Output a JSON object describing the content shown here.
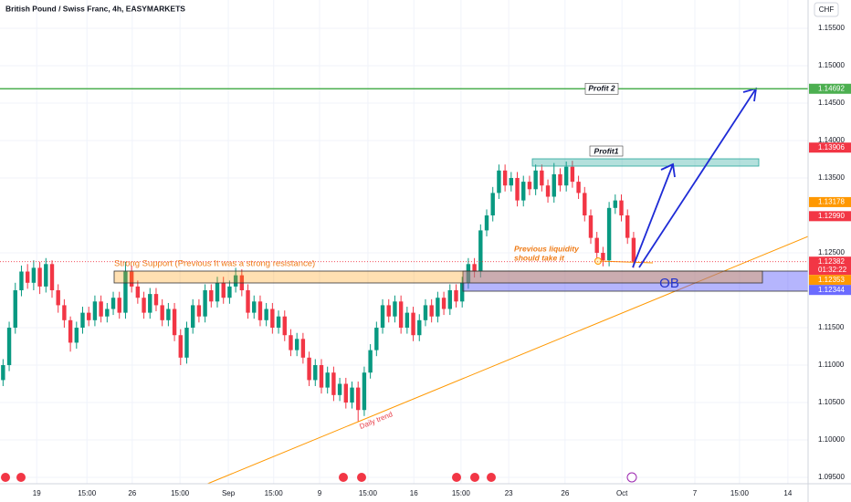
{
  "chart_data": {
    "type": "candlestick",
    "title": "British Pound / Swiss Franc, 4h, EASYMARKETS",
    "currency": "CHF",
    "up_color": "#089981",
    "down_color": "#f23645",
    "grid": true,
    "xlim": [
      -0.5,
      131.5
    ],
    "ylim": [
      1.09415,
      1.15878
    ],
    "xticks": [
      {
        "value": 5.5,
        "label": "19"
      },
      {
        "value": 13.7,
        "label": "15:00"
      },
      {
        "value": 21.1,
        "label": "26"
      },
      {
        "value": 28.9,
        "label": "15:00"
      },
      {
        "value": 36.8,
        "label": "Sep"
      },
      {
        "value": 44.2,
        "label": "15:00"
      },
      {
        "value": 51.7,
        "label": "9"
      },
      {
        "value": 59.6,
        "label": "15:00"
      },
      {
        "value": 67.1,
        "label": "16"
      },
      {
        "value": 74.8,
        "label": "15:00"
      },
      {
        "value": 82.6,
        "label": "23"
      },
      {
        "value": 91.8,
        "label": "26"
      },
      {
        "value": 101.1,
        "label": "Oct"
      },
      {
        "value": 113.0,
        "label": "7"
      },
      {
        "value": 120.3,
        "label": "15:00"
      },
      {
        "value": 128.2,
        "label": "14"
      }
    ],
    "yticks": [
      {
        "value": 1.155,
        "label": "1.15500"
      },
      {
        "value": 1.15,
        "label": "1.15000"
      },
      {
        "value": 1.145,
        "label": "1.14500"
      },
      {
        "value": 1.14,
        "label": "1.14000"
      },
      {
        "value": 1.135,
        "label": "1.13500"
      },
      {
        "value": 1.125,
        "label": "1.12500"
      },
      {
        "value": 1.115,
        "label": "1.11500"
      },
      {
        "value": 1.11,
        "label": "1.11000"
      },
      {
        "value": 1.105,
        "label": "1.10500"
      },
      {
        "value": 1.1,
        "label": "1.10000"
      },
      {
        "value": 1.095,
        "label": "1.09500"
      }
    ],
    "price_tags": [
      {
        "value": 1.14692,
        "label": "1.14692",
        "color": "#4caf50"
      },
      {
        "value": 1.13906,
        "label": "1.13906",
        "color": "#f23645"
      },
      {
        "value": 1.13178,
        "label": "1.13178",
        "color": "#ff9800"
      },
      {
        "value": 1.1299,
        "label": "1.12990",
        "color": "#f23645"
      },
      {
        "value": 1.12382,
        "label": "1.12382",
        "color": "#f23645",
        "countdown": "01:32:22"
      },
      {
        "value": 1.12353,
        "label": "1.12353",
        "color": "#ff9800"
      },
      {
        "value": 1.12344,
        "label": "1.12344",
        "color": "#6b6bff"
      }
    ],
    "annotations": {
      "support": "Strong Support (Previous It was a strong resistance)",
      "liquidity_1": "Previous liquidity",
      "liquidity_2": "should take it",
      "ob": "OB",
      "profit1": "Profit1",
      "profit2": "Profit 2",
      "trend": "Daily trend"
    },
    "candles": [
      [
        1.108,
        1.1108,
        1.1072,
        1.11
      ],
      [
        1.11,
        1.1158,
        1.1092,
        1.115
      ],
      [
        1.115,
        1.121,
        1.1142,
        1.12
      ],
      [
        1.12,
        1.1233,
        1.1192,
        1.1225
      ],
      [
        1.1225,
        1.1235,
        1.1202,
        1.121
      ],
      [
        1.121,
        1.124,
        1.12,
        1.123
      ],
      [
        1.123,
        1.1238,
        1.1195,
        1.1205
      ],
      [
        1.1205,
        1.1243,
        1.1197,
        1.1235
      ],
      [
        1.1235,
        1.124,
        1.119,
        1.12
      ],
      [
        1.12,
        1.1208,
        1.117,
        1.118
      ],
      [
        1.118,
        1.1188,
        1.115,
        1.116
      ],
      [
        1.116,
        1.1165,
        1.1118,
        1.113
      ],
      [
        1.113,
        1.1158,
        1.1122,
        1.115
      ],
      [
        1.115,
        1.1178,
        1.1142,
        1.117
      ],
      [
        1.117,
        1.1178,
        1.1152,
        1.116
      ],
      [
        1.116,
        1.1193,
        1.1152,
        1.1185
      ],
      [
        1.1185,
        1.1193,
        1.1157,
        1.1165
      ],
      [
        1.1165,
        1.1183,
        1.1157,
        1.1175
      ],
      [
        1.1175,
        1.1198,
        1.1167,
        1.119
      ],
      [
        1.119,
        1.1198,
        1.1162,
        1.117
      ],
      [
        1.117,
        1.1238,
        1.1162,
        1.1225
      ],
      [
        1.1225,
        1.1233,
        1.1197,
        1.1205
      ],
      [
        1.1205,
        1.1213,
        1.1182,
        1.119
      ],
      [
        1.119,
        1.1198,
        1.1162,
        1.117
      ],
      [
        1.117,
        1.1203,
        1.1162,
        1.1195
      ],
      [
        1.1195,
        1.1203,
        1.1172,
        1.118
      ],
      [
        1.118,
        1.1188,
        1.1152,
        1.116
      ],
      [
        1.116,
        1.1183,
        1.1152,
        1.1175
      ],
      [
        1.1175,
        1.1183,
        1.1132,
        1.114
      ],
      [
        1.114,
        1.1148,
        1.11,
        1.111
      ],
      [
        1.111,
        1.1158,
        1.1102,
        1.115
      ],
      [
        1.115,
        1.1188,
        1.1142,
        1.118
      ],
      [
        1.118,
        1.1188,
        1.1157,
        1.1165
      ],
      [
        1.1165,
        1.1208,
        1.1157,
        1.12
      ],
      [
        1.12,
        1.1208,
        1.1177,
        1.1185
      ],
      [
        1.1185,
        1.1218,
        1.1177,
        1.121
      ],
      [
        1.121,
        1.1218,
        1.1182,
        1.119
      ],
      [
        1.119,
        1.1213,
        1.1182,
        1.1205
      ],
      [
        1.1205,
        1.123,
        1.1197,
        1.122
      ],
      [
        1.122,
        1.1228,
        1.1192,
        1.12
      ],
      [
        1.12,
        1.1208,
        1.1162,
        1.117
      ],
      [
        1.117,
        1.1193,
        1.1162,
        1.1185
      ],
      [
        1.1185,
        1.1193,
        1.1152,
        1.116
      ],
      [
        1.116,
        1.1183,
        1.1152,
        1.1175
      ],
      [
        1.1175,
        1.1183,
        1.1142,
        1.115
      ],
      [
        1.115,
        1.1173,
        1.1142,
        1.1165
      ],
      [
        1.1165,
        1.1173,
        1.1132,
        1.114
      ],
      [
        1.114,
        1.1148,
        1.1112,
        1.112
      ],
      [
        1.112,
        1.1143,
        1.1112,
        1.1135
      ],
      [
        1.1135,
        1.1143,
        1.1102,
        1.111
      ],
      [
        1.111,
        1.1118,
        1.1072,
        1.108
      ],
      [
        1.108,
        1.1108,
        1.1072,
        1.11
      ],
      [
        1.11,
        1.1108,
        1.1062,
        1.107
      ],
      [
        1.107,
        1.1098,
        1.1062,
        1.109
      ],
      [
        1.109,
        1.1098,
        1.1052,
        1.106
      ],
      [
        1.106,
        1.1083,
        1.1052,
        1.1075
      ],
      [
        1.1075,
        1.1083,
        1.1042,
        1.105
      ],
      [
        1.105,
        1.1078,
        1.1042,
        1.107
      ],
      [
        1.107,
        1.1078,
        1.1025,
        1.104
      ],
      [
        1.104,
        1.1098,
        1.1032,
        1.109
      ],
      [
        1.109,
        1.1128,
        1.1082,
        1.112
      ],
      [
        1.112,
        1.1158,
        1.1112,
        1.115
      ],
      [
        1.115,
        1.1188,
        1.1142,
        1.118
      ],
      [
        1.118,
        1.1188,
        1.1157,
        1.1165
      ],
      [
        1.1165,
        1.1193,
        1.1157,
        1.1185
      ],
      [
        1.1185,
        1.1193,
        1.1142,
        1.115
      ],
      [
        1.115,
        1.1178,
        1.1142,
        1.117
      ],
      [
        1.117,
        1.1178,
        1.1132,
        1.114
      ],
      [
        1.114,
        1.1168,
        1.1132,
        1.116
      ],
      [
        1.116,
        1.1188,
        1.1152,
        1.118
      ],
      [
        1.118,
        1.1188,
        1.1157,
        1.1165
      ],
      [
        1.1165,
        1.1198,
        1.1157,
        1.119
      ],
      [
        1.119,
        1.1198,
        1.1167,
        1.1175
      ],
      [
        1.1175,
        1.1208,
        1.1167,
        1.12
      ],
      [
        1.12,
        1.1208,
        1.1177,
        1.1185
      ],
      [
        1.1185,
        1.1218,
        1.1177,
        1.121
      ],
      [
        1.121,
        1.1243,
        1.1202,
        1.1235
      ],
      [
        1.1235,
        1.1243,
        1.1217,
        1.1225
      ],
      [
        1.1225,
        1.1288,
        1.1217,
        1.128
      ],
      [
        1.128,
        1.1308,
        1.1272,
        1.13
      ],
      [
        1.13,
        1.1338,
        1.1292,
        1.133
      ],
      [
        1.133,
        1.1368,
        1.1322,
        1.136
      ],
      [
        1.136,
        1.1368,
        1.1332,
        1.134
      ],
      [
        1.134,
        1.1358,
        1.1332,
        1.135
      ],
      [
        1.135,
        1.1358,
        1.1312,
        1.132
      ],
      [
        1.132,
        1.1353,
        1.1312,
        1.1345
      ],
      [
        1.1345,
        1.1353,
        1.1327,
        1.1335
      ],
      [
        1.1335,
        1.1368,
        1.1327,
        1.136
      ],
      [
        1.136,
        1.1368,
        1.1332,
        1.134
      ],
      [
        1.134,
        1.1348,
        1.1317,
        1.1325
      ],
      [
        1.1325,
        1.137,
        1.1317,
        1.1355
      ],
      [
        1.1355,
        1.1363,
        1.1332,
        1.134
      ],
      [
        1.134,
        1.1372,
        1.1332,
        1.1365
      ],
      [
        1.1365,
        1.1373,
        1.1337,
        1.1345
      ],
      [
        1.1345,
        1.1353,
        1.1322,
        1.133
      ],
      [
        1.133,
        1.1338,
        1.1292,
        1.13
      ],
      [
        1.13,
        1.1308,
        1.1262,
        1.127
      ],
      [
        1.127,
        1.1278,
        1.1242,
        1.125
      ],
      [
        1.125,
        1.1258,
        1.1232,
        1.124
      ],
      [
        1.124,
        1.1318,
        1.1232,
        1.131
      ],
      [
        1.131,
        1.1328,
        1.1302,
        1.132
      ],
      [
        1.132,
        1.1328,
        1.1292,
        1.13
      ],
      [
        1.13,
        1.1308,
        1.1262,
        1.127
      ],
      [
        1.127,
        1.1278,
        1.123,
        1.1238
      ]
    ]
  }
}
